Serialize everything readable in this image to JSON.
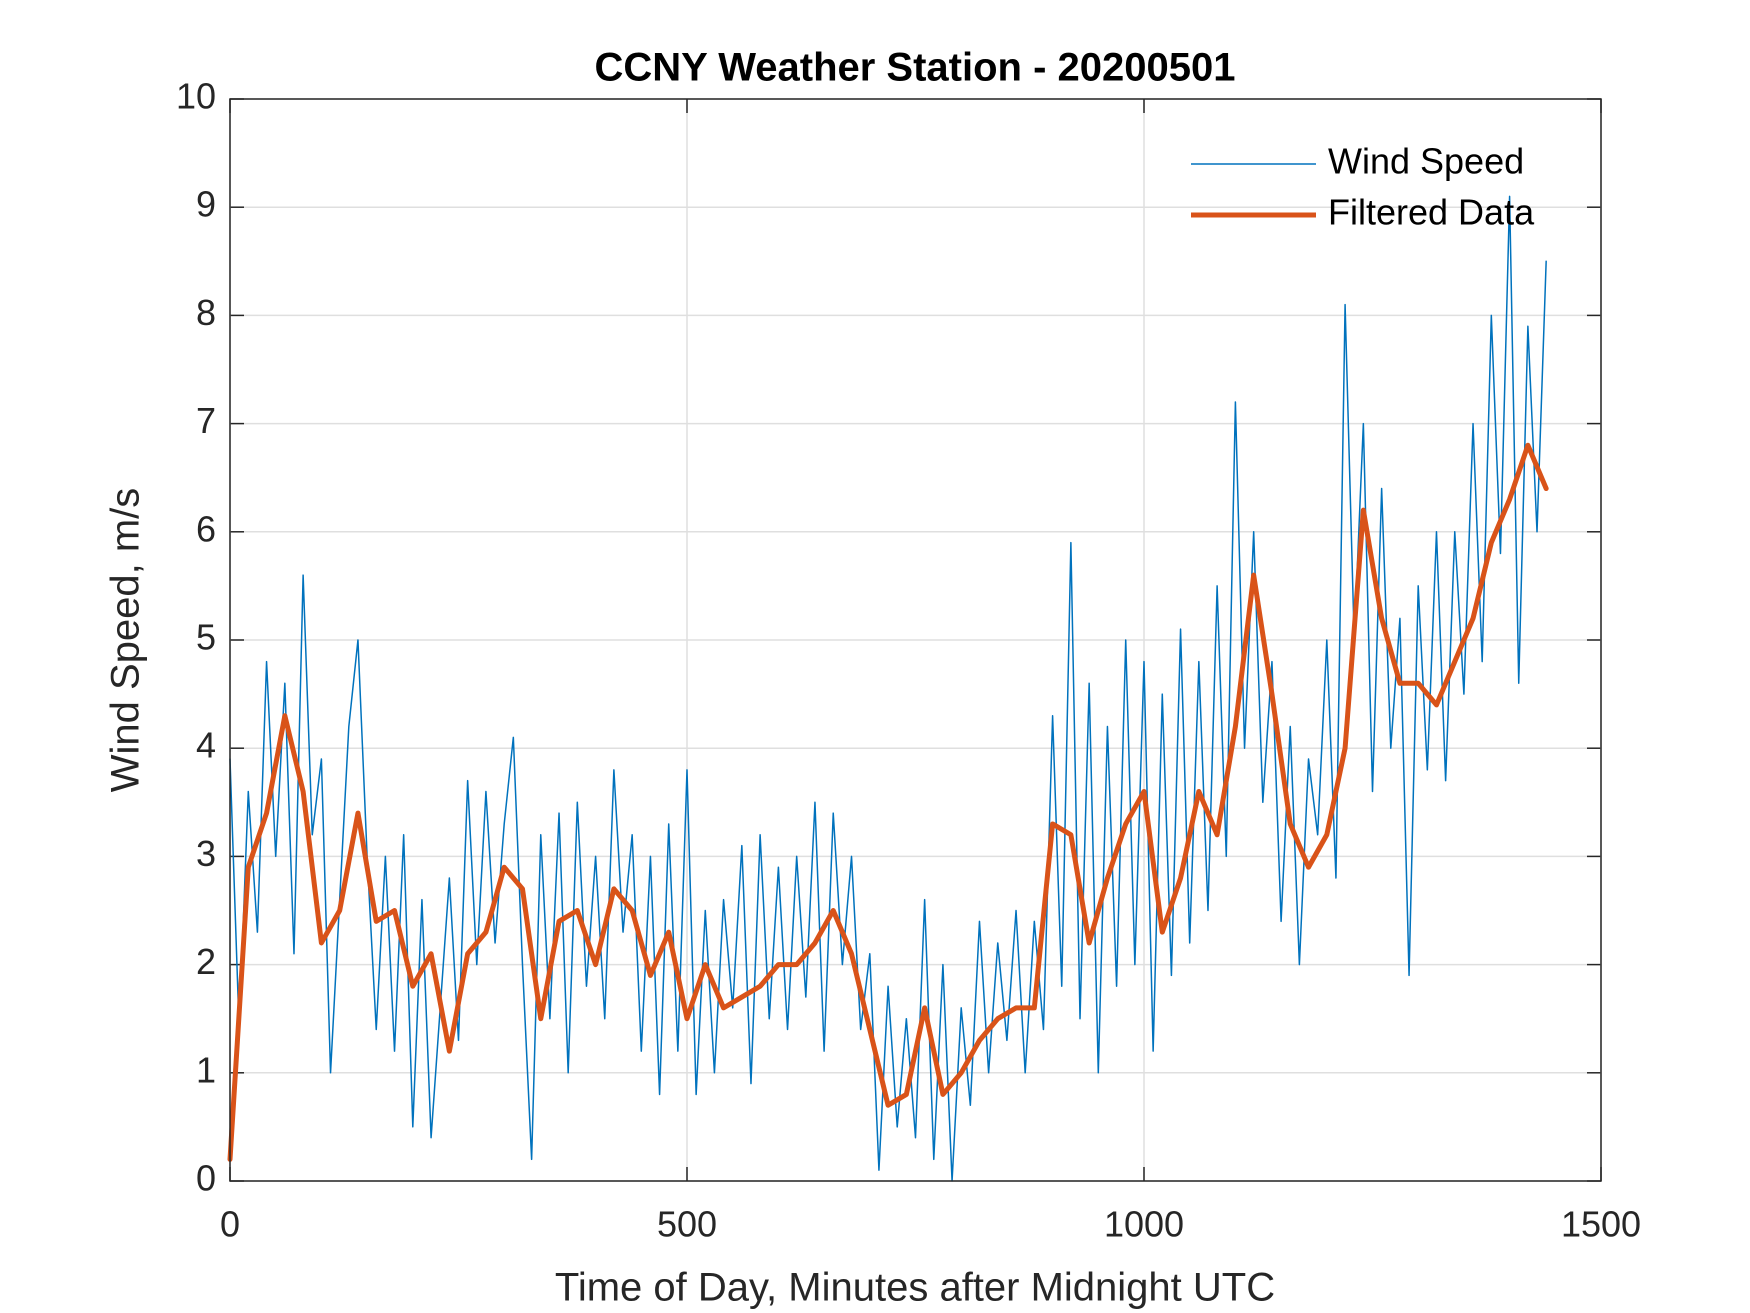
{
  "chart_data": {
    "type": "line",
    "title": "CCNY Weather Station - 20200501",
    "x_label": "Time of Day, Minutes after Midnight UTC",
    "y_label": "Wind Speed, m/s",
    "xlim": [
      0,
      1500
    ],
    "xticks": [
      0,
      500,
      1000,
      1500
    ],
    "ylim": [
      0,
      10
    ],
    "yticks": [
      0,
      1,
      2,
      3,
      4,
      5,
      6,
      7,
      8,
      9,
      10
    ],
    "grid": true,
    "legend": "northeast",
    "series": [
      {
        "name": "Wind Speed",
        "color": "#0072BD",
        "line_width": 1.5,
        "x": [
          0,
          10,
          20,
          30,
          40,
          50,
          60,
          70,
          80,
          90,
          100,
          110,
          120,
          130,
          140,
          150,
          160,
          170,
          180,
          190,
          200,
          210,
          220,
          230,
          240,
          250,
          260,
          270,
          280,
          290,
          300,
          310,
          320,
          330,
          340,
          350,
          360,
          370,
          380,
          390,
          400,
          410,
          420,
          430,
          440,
          450,
          460,
          470,
          480,
          490,
          500,
          510,
          520,
          530,
          540,
          550,
          560,
          570,
          580,
          590,
          600,
          610,
          620,
          630,
          640,
          650,
          660,
          670,
          680,
          690,
          700,
          710,
          720,
          730,
          740,
          750,
          760,
          770,
          780,
          790,
          800,
          810,
          820,
          830,
          840,
          850,
          860,
          870,
          880,
          890,
          900,
          910,
          920,
          930,
          940,
          950,
          960,
          970,
          980,
          990,
          1000,
          1010,
          1020,
          1030,
          1040,
          1050,
          1060,
          1070,
          1080,
          1090,
          1100,
          1110,
          1120,
          1130,
          1140,
          1150,
          1160,
          1170,
          1180,
          1190,
          1200,
          1210,
          1220,
          1230,
          1240,
          1250,
          1260,
          1270,
          1280,
          1290,
          1300,
          1310,
          1320,
          1330,
          1340,
          1350,
          1360,
          1370,
          1380,
          1390,
          1400,
          1410,
          1420,
          1430,
          1440
        ],
        "values": [
          3.9,
          1.4,
          3.6,
          2.3,
          4.8,
          3.0,
          4.6,
          2.1,
          5.6,
          3.2,
          3.9,
          1.0,
          2.6,
          4.2,
          5.0,
          3.0,
          1.4,
          3.0,
          1.2,
          3.2,
          0.5,
          2.6,
          0.4,
          1.6,
          2.8,
          1.3,
          3.7,
          2.0,
          3.6,
          2.2,
          3.3,
          4.1,
          2.0,
          0.2,
          3.2,
          1.5,
          3.4,
          1.0,
          3.5,
          1.8,
          3.0,
          1.5,
          3.8,
          2.3,
          3.2,
          1.2,
          3.0,
          0.8,
          3.3,
          1.2,
          3.8,
          0.8,
          2.5,
          1.0,
          2.6,
          1.6,
          3.1,
          0.9,
          3.2,
          1.5,
          2.9,
          1.4,
          3.0,
          1.7,
          3.5,
          1.2,
          3.4,
          2.0,
          3.0,
          1.4,
          2.1,
          0.1,
          1.8,
          0.5,
          1.5,
          0.4,
          2.6,
          0.2,
          2.0,
          0.0,
          1.6,
          0.7,
          2.4,
          1.0,
          2.2,
          1.3,
          2.5,
          1.0,
          2.4,
          1.4,
          4.3,
          1.8,
          5.9,
          1.5,
          4.6,
          1.0,
          4.2,
          1.8,
          5.0,
          2.0,
          4.8,
          1.2,
          4.5,
          1.9,
          5.1,
          2.2,
          4.8,
          2.5,
          5.5,
          3.0,
          7.2,
          4.0,
          6.0,
          3.5,
          4.8,
          2.4,
          4.2,
          2.0,
          3.9,
          3.2,
          5.0,
          2.8,
          8.1,
          5.0,
          7.0,
          3.6,
          6.4,
          4.0,
          5.2,
          1.9,
          5.5,
          3.8,
          6.0,
          3.7,
          6.0,
          4.5,
          7.0,
          4.8,
          8.0,
          5.8,
          9.1,
          4.6,
          7.9,
          6.0,
          8.5
        ]
      },
      {
        "name": "Filtered Data",
        "color": "#D95319",
        "line_width": 5,
        "x": [
          0,
          20,
          40,
          60,
          80,
          100,
          120,
          140,
          160,
          180,
          200,
          220,
          240,
          260,
          280,
          300,
          320,
          340,
          360,
          380,
          400,
          420,
          440,
          460,
          480,
          500,
          520,
          540,
          560,
          580,
          600,
          620,
          640,
          660,
          680,
          700,
          720,
          740,
          760,
          780,
          800,
          820,
          840,
          860,
          880,
          900,
          920,
          940,
          960,
          980,
          1000,
          1020,
          1040,
          1060,
          1080,
          1100,
          1120,
          1140,
          1160,
          1180,
          1200,
          1220,
          1240,
          1260,
          1280,
          1300,
          1320,
          1340,
          1360,
          1380,
          1400,
          1420,
          1440
        ],
        "values": [
          0.2,
          2.9,
          3.4,
          4.3,
          3.6,
          2.2,
          2.5,
          3.4,
          2.4,
          2.5,
          1.8,
          2.1,
          1.2,
          2.1,
          2.3,
          2.9,
          2.7,
          1.5,
          2.4,
          2.5,
          2.0,
          2.7,
          2.5,
          1.9,
          2.3,
          1.5,
          2.0,
          1.6,
          1.7,
          1.8,
          2.0,
          2.0,
          2.2,
          2.5,
          2.1,
          1.4,
          0.7,
          0.8,
          1.6,
          0.8,
          1.0,
          1.3,
          1.5,
          1.6,
          1.6,
          3.3,
          3.2,
          2.2,
          2.8,
          3.3,
          3.6,
          2.3,
          2.8,
          3.6,
          3.2,
          4.2,
          5.6,
          4.5,
          3.3,
          2.9,
          3.2,
          4.0,
          6.2,
          5.2,
          4.6,
          4.6,
          4.4,
          4.8,
          5.2,
          5.9,
          6.3,
          6.8,
          6.4
        ]
      }
    ]
  }
}
